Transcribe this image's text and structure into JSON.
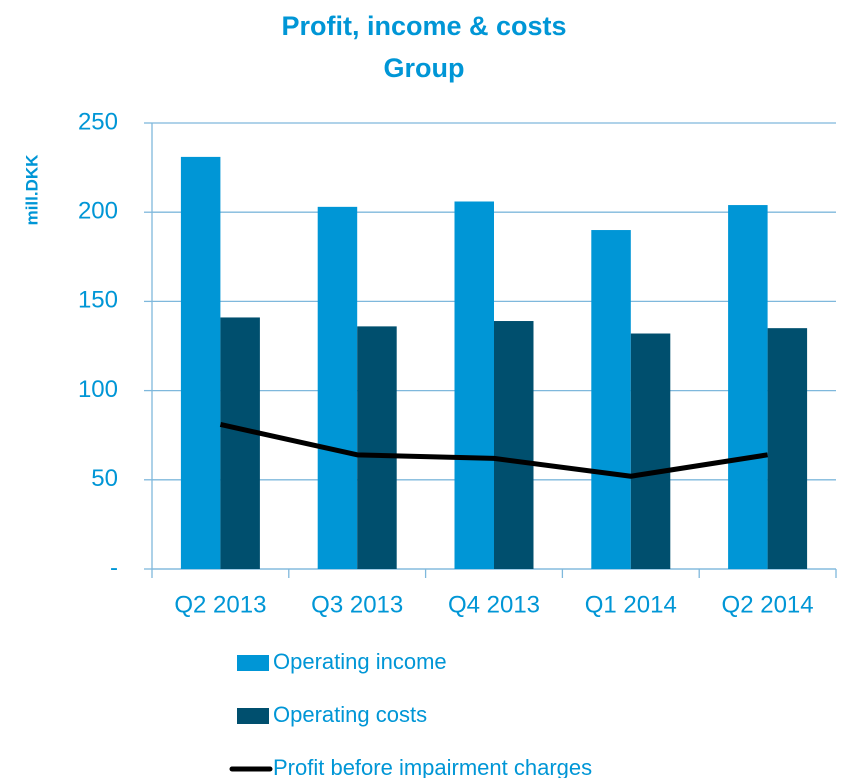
{
  "chart_data": {
    "type": "bar",
    "title": "Profit, income & costs",
    "subtitle": "Group",
    "y_label": "mill.DKK",
    "categories": [
      "Q2 2013",
      "Q3 2013",
      "Q4 2013",
      "Q1 2014",
      "Q2 2014"
    ],
    "series": [
      {
        "name": "Operating income",
        "type": "bar",
        "color": "#0096d6",
        "values": [
          231,
          203,
          206,
          190,
          204
        ]
      },
      {
        "name": "Operating costs",
        "type": "bar",
        "color": "#004f6e",
        "values": [
          141,
          136,
          139,
          132,
          135
        ]
      },
      {
        "name": "Profit before impairment charges",
        "type": "line",
        "color": "#000000",
        "values": [
          81,
          64,
          62,
          52,
          64
        ]
      }
    ],
    "ylim": [
      0,
      250
    ],
    "yticks": [
      {
        "value": 0,
        "label": "-"
      },
      50,
      100,
      150,
      200,
      250
    ],
    "grid": true,
    "legend": "bottom"
  }
}
